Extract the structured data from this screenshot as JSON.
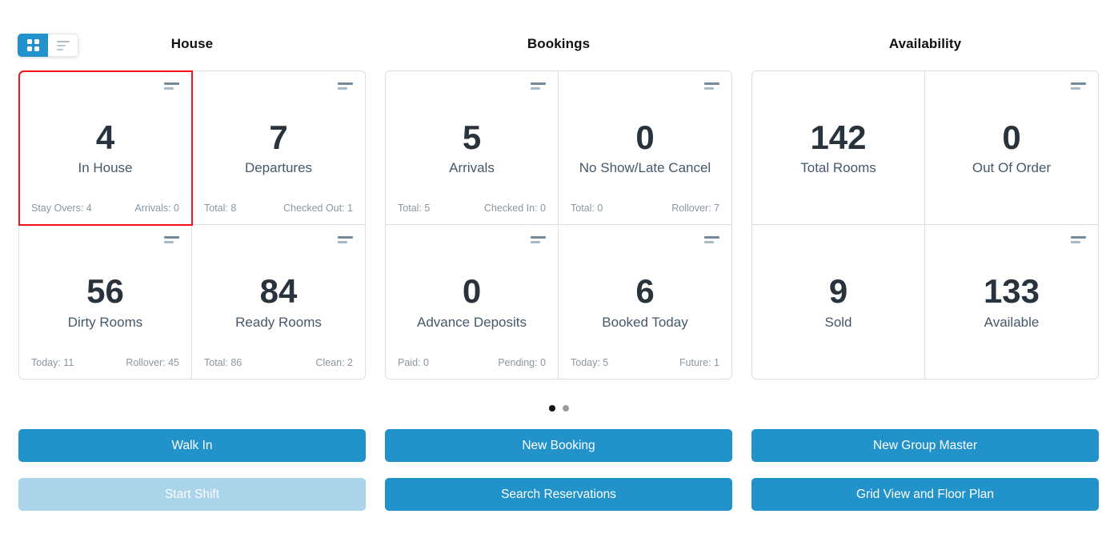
{
  "view_toggle": {
    "grid_icon": "grid-view-icon",
    "list_icon": "list-view-icon",
    "active": "grid"
  },
  "sections": [
    {
      "title": "House",
      "cards": [
        {
          "value": "4",
          "label": "In House",
          "footer_left": "Stay Overs: 4",
          "footer_right": "Arrivals: 0",
          "highlighted": true,
          "has_icon": true
        },
        {
          "value": "7",
          "label": "Departures",
          "footer_left": "Total: 8",
          "footer_right": "Checked Out: 1",
          "highlighted": false,
          "has_icon": true
        },
        {
          "value": "56",
          "label": "Dirty Rooms",
          "footer_left": "Today: 11",
          "footer_right": "Rollover: 45",
          "highlighted": false,
          "has_icon": true
        },
        {
          "value": "84",
          "label": "Ready Rooms",
          "footer_left": "Total: 86",
          "footer_right": "Clean: 2",
          "highlighted": false,
          "has_icon": true
        }
      ]
    },
    {
      "title": "Bookings",
      "cards": [
        {
          "value": "5",
          "label": "Arrivals",
          "footer_left": "Total: 5",
          "footer_right": "Checked In: 0",
          "highlighted": false,
          "has_icon": true
        },
        {
          "value": "0",
          "label": "No Show/Late Cancel",
          "footer_left": "Total: 0",
          "footer_right": "Rollover: 7",
          "highlighted": false,
          "has_icon": true
        },
        {
          "value": "0",
          "label": "Advance Deposits",
          "footer_left": "Paid: 0",
          "footer_right": "Pending: 0",
          "highlighted": false,
          "has_icon": true
        },
        {
          "value": "6",
          "label": "Booked Today",
          "footer_left": "Today: 5",
          "footer_right": "Future: 1",
          "highlighted": false,
          "has_icon": true
        }
      ]
    },
    {
      "title": "Availability",
      "cards": [
        {
          "value": "142",
          "label": "Total Rooms",
          "footer_left": "",
          "footer_right": "",
          "highlighted": false,
          "has_icon": false
        },
        {
          "value": "0",
          "label": "Out Of Order",
          "footer_left": "",
          "footer_right": "",
          "highlighted": false,
          "has_icon": true
        },
        {
          "value": "9",
          "label": "Sold",
          "footer_left": "",
          "footer_right": "",
          "highlighted": false,
          "has_icon": false
        },
        {
          "value": "133",
          "label": "Available",
          "footer_left": "",
          "footer_right": "",
          "highlighted": false,
          "has_icon": true
        }
      ]
    }
  ],
  "pagination": {
    "dot_count": 2,
    "active_index": 0
  },
  "actions": [
    {
      "label": "Walk In",
      "disabled": false
    },
    {
      "label": "New Booking",
      "disabled": false
    },
    {
      "label": "New Group Master",
      "disabled": false
    },
    {
      "label": "Start Shift",
      "disabled": true
    },
    {
      "label": "Search Reservations",
      "disabled": false
    },
    {
      "label": "Grid View and Floor Plan",
      "disabled": false
    }
  ],
  "colors": {
    "accent_blue": "#2192ca",
    "disabled_blue": "#aad4ea",
    "highlight_red": "#f21414",
    "value_text": "#29333d",
    "label_text": "#45586b",
    "footer_text": "#8a96a1",
    "card_border": "#dcdfe2"
  }
}
